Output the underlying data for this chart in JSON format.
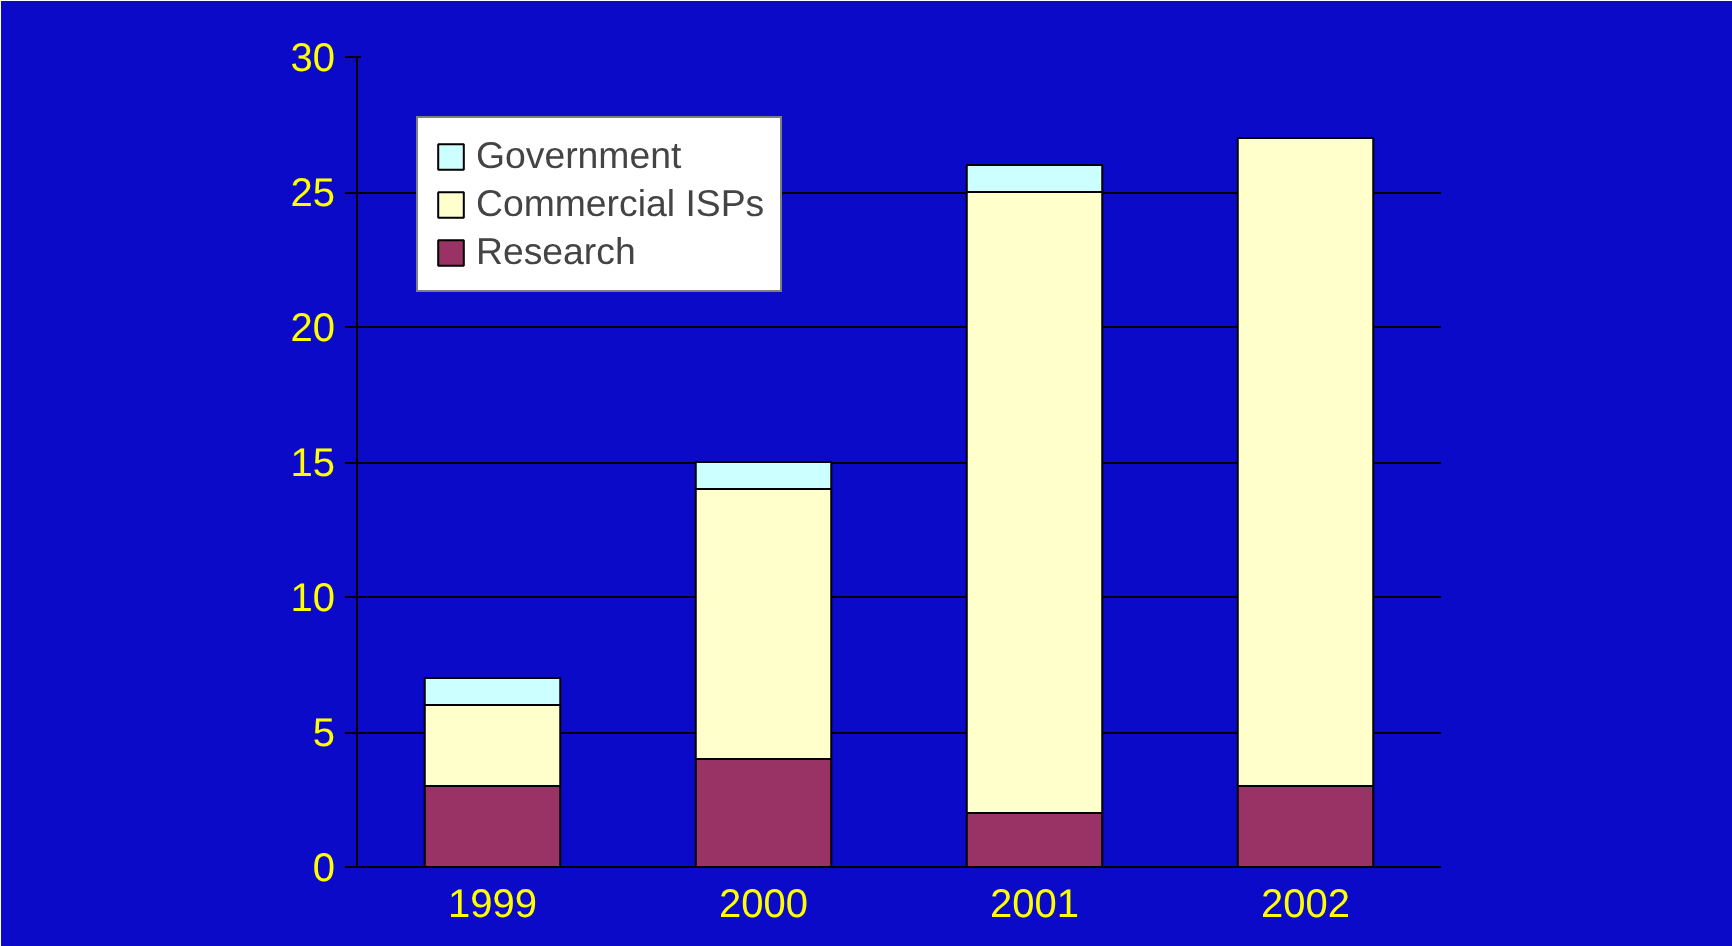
{
  "chart_data": {
    "type": "bar",
    "stacked": true,
    "categories": [
      "1999",
      "2000",
      "2001",
      "2002"
    ],
    "series": [
      {
        "name": "Research",
        "color": "#993366",
        "values": [
          3,
          4,
          2,
          3
        ]
      },
      {
        "name": "Commercial ISPs",
        "color": "#ffffcc",
        "values": [
          3,
          10,
          23,
          24
        ]
      },
      {
        "name": "Government",
        "color": "#ccffff",
        "values": [
          1,
          1,
          1,
          null
        ]
      }
    ],
    "ylim": [
      0,
      30
    ],
    "yticks": [
      0,
      5,
      10,
      15,
      20,
      25,
      30
    ],
    "grid": "y",
    "legend": "top left"
  }
}
